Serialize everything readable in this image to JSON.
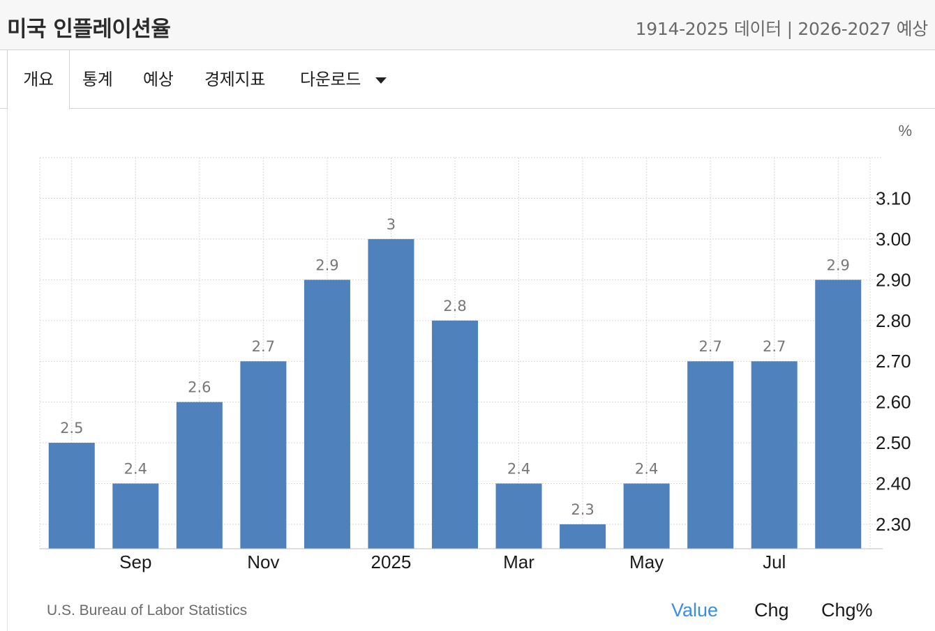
{
  "header": {
    "title": "미국 인플레이션율",
    "subtitle": "1914-2025 데이터 | 2026-2027 예상"
  },
  "tabs": [
    {
      "label": "개요",
      "active": true
    },
    {
      "label": "통계",
      "active": false
    },
    {
      "label": "예상",
      "active": false
    },
    {
      "label": "경제지표",
      "active": false
    },
    {
      "label": "다운로드",
      "active": false,
      "icon": "caret-down-icon"
    }
  ],
  "chart": {
    "unit_label": "%"
  },
  "footer": {
    "source": "U.S. Bureau of Labor Statistics",
    "toggles": [
      {
        "label": "Value",
        "active": true
      },
      {
        "label": "Chg",
        "active": false
      },
      {
        "label": "Chg%",
        "active": false
      }
    ]
  },
  "colors": {
    "bar": "#4f81bd",
    "active_toggle": "#3a8ee6",
    "grid": "#d9d9d9",
    "value_label": "#777777"
  },
  "chart_data": {
    "type": "bar",
    "categories": [
      "",
      "Sep",
      "",
      "Nov",
      "",
      "2025",
      "",
      "Mar",
      "",
      "May",
      "",
      "Jul",
      ""
    ],
    "values": [
      2.5,
      2.4,
      2.6,
      2.7,
      2.9,
      3,
      2.8,
      2.4,
      2.3,
      2.4,
      2.7,
      2.7,
      2.9
    ],
    "value_labels": [
      "2.5",
      "2.4",
      "2.6",
      "2.7",
      "2.9",
      "3",
      "2.8",
      "2.4",
      "2.3",
      "2.4",
      "2.7",
      "2.7",
      "2.9"
    ],
    "y_ticks": [
      "2.30",
      "2.40",
      "2.50",
      "2.60",
      "2.70",
      "2.80",
      "2.90",
      "3.00",
      "3.10"
    ],
    "ylim": [
      2.24,
      3.2
    ],
    "ylabel": "%",
    "grid": true,
    "y_axis_position": "right"
  }
}
